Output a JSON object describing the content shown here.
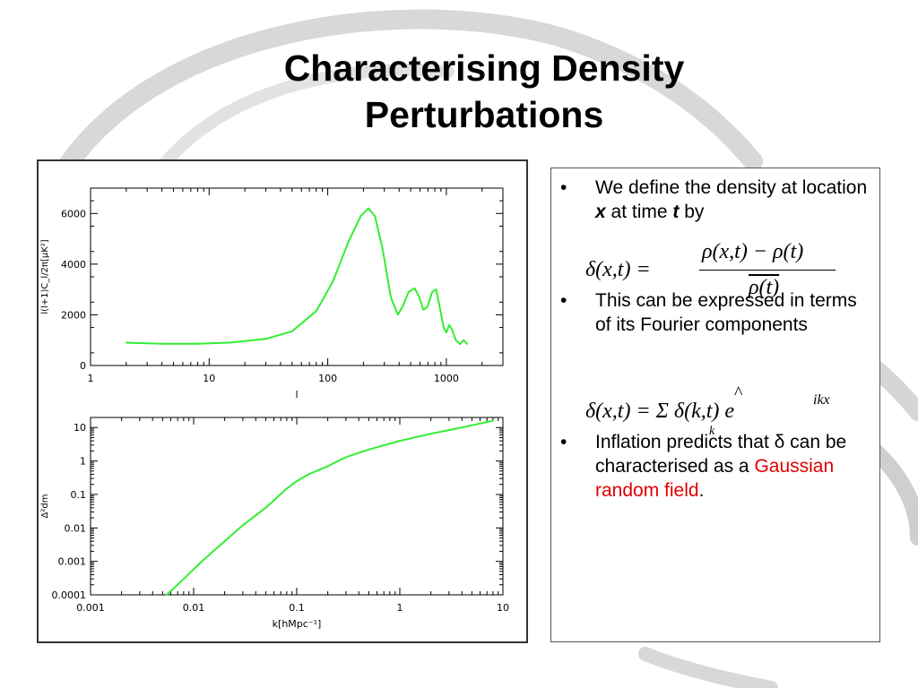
{
  "slide": {
    "title_line1": "Characterising Density",
    "title_line2": "Perturbations"
  },
  "bullets": {
    "b1_text1": "We define the density at location ",
    "b1_x": "x",
    "b1_text2": " at time ",
    "b1_t": "t",
    "b1_text3": " by",
    "eq1_lhs": "δ(x,t) =",
    "eq1_num": "ρ(x,t) − ρ(t)",
    "eq1_den": "ρ(t)",
    "b2_text": "This can be expressed in terms of its Fourier components",
    "eq2_text": "δ(x,t) = Σ δ(k,t) e",
    "eq2_hat": "^",
    "eq2_sub": "k",
    "eq2_sup": "ikx",
    "b3_text1": "Inflation predicts that δ can be characterised as a ",
    "b3_red": "Gaussian random field",
    "b3_text2": ".",
    "bullet_char": "•"
  },
  "chart_data": [
    {
      "type": "line",
      "xscale": "log",
      "xlim": [
        1,
        3000
      ],
      "ylim": [
        0,
        7000
      ],
      "xticks": [
        1,
        10,
        100,
        1000
      ],
      "xtick_labels": [
        "1",
        "10",
        "100",
        "1000"
      ],
      "yticks": [
        0,
        2000,
        4000,
        6000
      ],
      "ytick_labels": [
        "0",
        "2000",
        "4000",
        "6000"
      ],
      "xlabel": "l",
      "ylabel": "l(l+1)C_l/2π[μK²]",
      "grid": false,
      "color": "#33ee33",
      "x": [
        2,
        4,
        8,
        15,
        30,
        50,
        80,
        110,
        150,
        190,
        220,
        250,
        290,
        340,
        390,
        430,
        480,
        540,
        590,
        640,
        690,
        760,
        820,
        880,
        950,
        1000,
        1060,
        1120,
        1200,
        1300,
        1400,
        1500
      ],
      "y": [
        900,
        860,
        860,
        900,
        1050,
        1350,
        2150,
        3300,
        4900,
        5900,
        6200,
        5900,
        4600,
        2700,
        2000,
        2350,
        2900,
        3050,
        2700,
        2200,
        2300,
        2900,
        3000,
        2300,
        1500,
        1300,
        1600,
        1400,
        1000,
        850,
        1000,
        850
      ]
    },
    {
      "type": "line",
      "xscale": "log",
      "yscale": "log",
      "xlim": [
        0.001,
        10
      ],
      "ylim": [
        0.0001,
        20
      ],
      "xticks": [
        0.001,
        0.01,
        0.1,
        1,
        10
      ],
      "xtick_labels": [
        "0.001",
        "0.01",
        "0.1",
        "1",
        "10"
      ],
      "yticks": [
        0.0001,
        0.001,
        0.01,
        0.1,
        1,
        10
      ],
      "ytick_labels": [
        "0.0001",
        "0.001",
        "0.01",
        "0.1",
        "1",
        "10"
      ],
      "xlabel": "k[hMpc⁻¹]",
      "ylabel": "Δ²dm",
      "grid": false,
      "color": "#33ee33",
      "x": [
        0.0055,
        0.008,
        0.012,
        0.02,
        0.03,
        0.05,
        0.08,
        0.1,
        0.13,
        0.2,
        0.3,
        0.5,
        1,
        2,
        4,
        8
      ],
      "y": [
        0.0001,
        0.0003,
        0.001,
        0.004,
        0.012,
        0.04,
        0.15,
        0.25,
        0.4,
        0.7,
        1.3,
        2.2,
        4,
        6.5,
        10,
        16
      ]
    }
  ]
}
